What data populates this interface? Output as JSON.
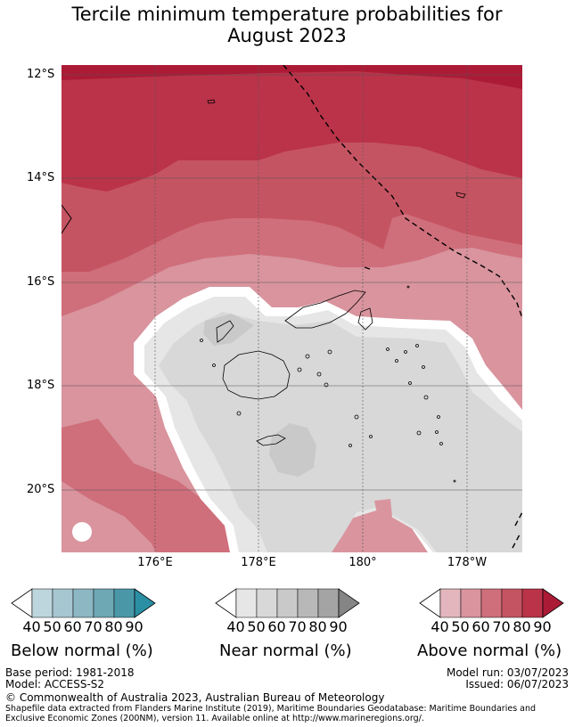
{
  "title_line1": "Tercile minimum temperature probabilities for",
  "title_line2": "August 2023",
  "lat_labels": [
    "12°S",
    "14°S",
    "16°S",
    "18°S",
    "20°S"
  ],
  "lon_labels": [
    "176°E",
    "178°E",
    "180°",
    "178°W"
  ],
  "legends": {
    "below": {
      "title": "Below normal (%)",
      "ticks": [
        "40",
        "50",
        "60",
        "70",
        "80",
        "90"
      ],
      "colors": [
        "#ffffff",
        "#bdd5dd",
        "#a6c6d0",
        "#8cb7c3",
        "#6ea8b5",
        "#4a97a8",
        "#2b8fa3"
      ]
    },
    "near": {
      "title": "Near normal (%)",
      "ticks": [
        "40",
        "50",
        "60",
        "70",
        "80",
        "90"
      ],
      "colors": [
        "#ffffff",
        "#e6e6e6",
        "#d8d8d8",
        "#c9c9c9",
        "#b8b8b8",
        "#a4a4a4",
        "#858585"
      ]
    },
    "above": {
      "title": "Above normal (%)",
      "ticks": [
        "40",
        "50",
        "60",
        "70",
        "80",
        "90"
      ],
      "colors": [
        "#ffffff",
        "#e3b5bc",
        "#d9949e",
        "#cf6f7b",
        "#c55462",
        "#ba3349",
        "#ac1b36"
      ]
    }
  },
  "footer": {
    "base_period": "Base period: 1981-2018",
    "model": "Model: ACCESS-S2",
    "model_run": "Model run: 03/07/2023",
    "issued": "Issued: 06/07/2023",
    "copyright": "© Commonwealth of Australia 2023, Australian Bureau of Meteorology",
    "source": "Shapefile data extracted from Flanders Marine Institute (2019), Maritime Boundaries Geodatabase: Maritime Boundaries and Exclusive Economic Zones (200NM), version 11. Available online at http://www.marineregions.org/."
  }
}
